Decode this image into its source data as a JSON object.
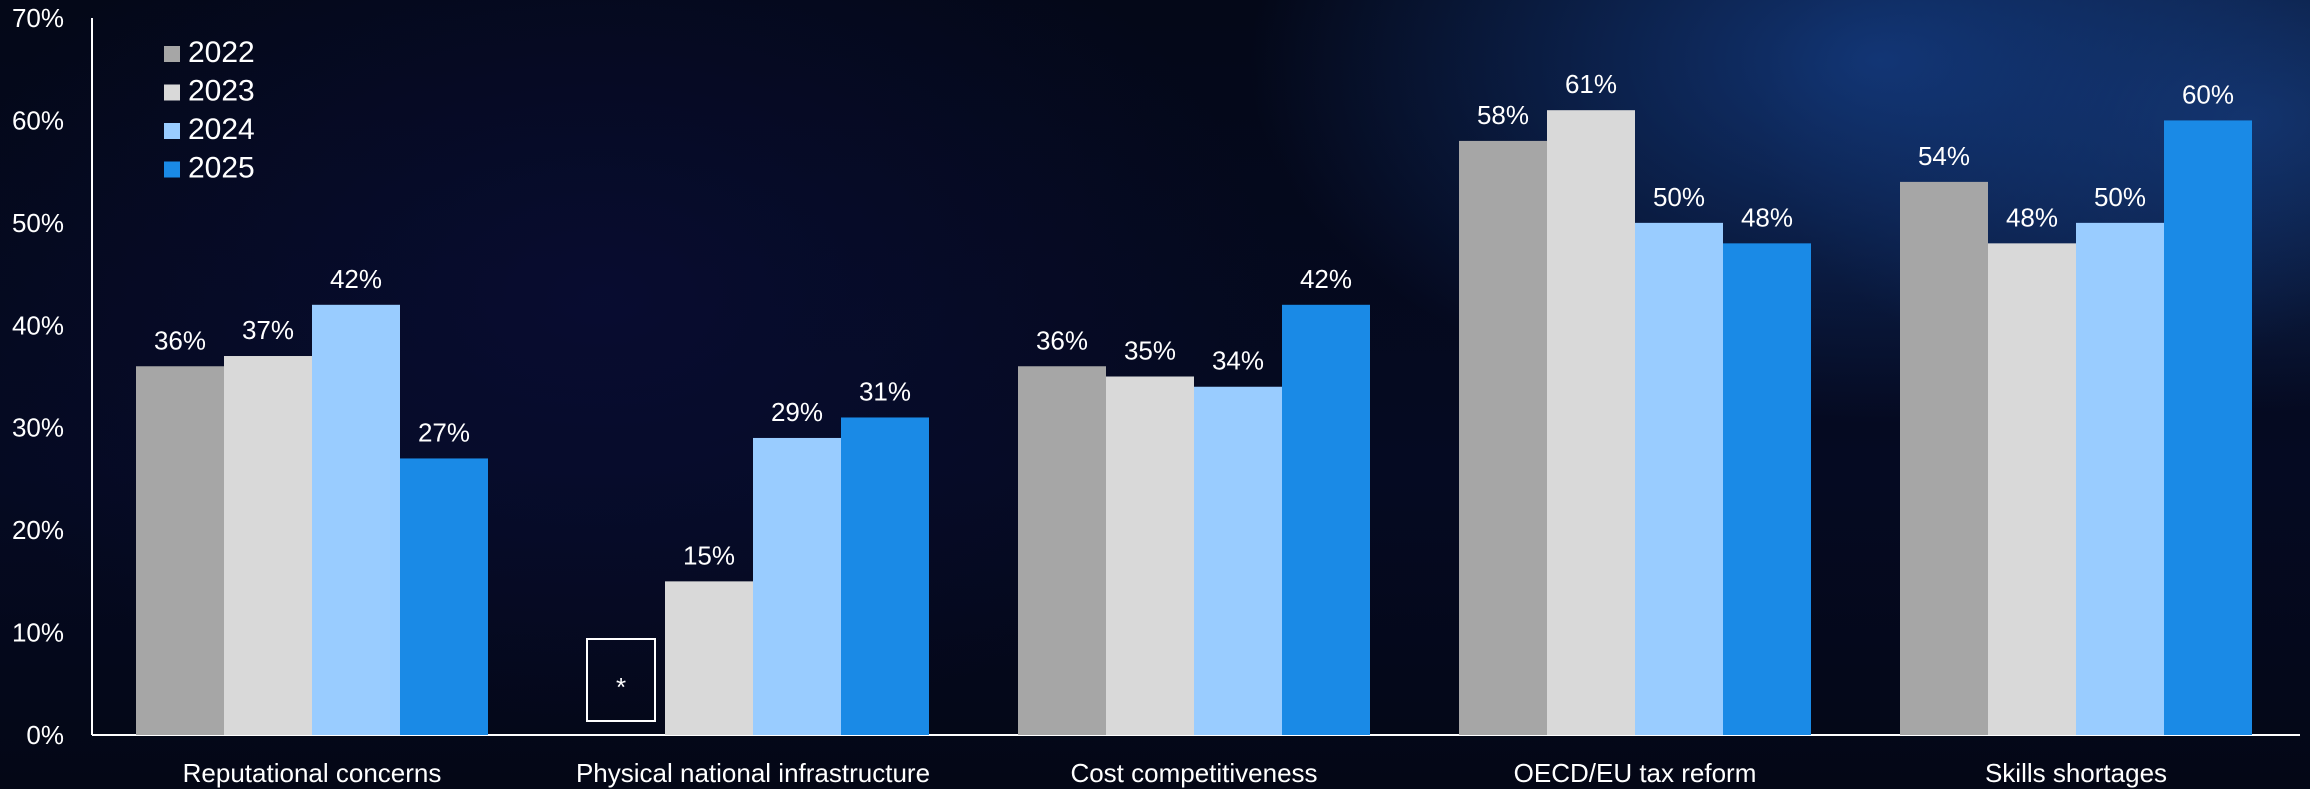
{
  "chart_data": {
    "type": "bar",
    "categories": [
      "Reputational concerns",
      "Physical national infrastructure",
      "Cost competitiveness",
      "OECD/EU tax reform",
      "Skills shortages"
    ],
    "series": [
      {
        "name": "2022",
        "color": "#a6a6a6",
        "values": [
          36,
          null,
          36,
          58,
          54
        ]
      },
      {
        "name": "2023",
        "color": "#d9d9d9",
        "values": [
          37,
          15,
          35,
          61,
          48
        ]
      },
      {
        "name": "2024",
        "color": "#99ccff",
        "values": [
          42,
          29,
          34,
          50,
          50
        ]
      },
      {
        "name": "2025",
        "color": "#1a8ae6",
        "values": [
          27,
          31,
          42,
          48,
          60
        ]
      }
    ],
    "data_labels": [
      [
        "36%",
        "*",
        "36%",
        "58%",
        "54%"
      ],
      [
        "37%",
        "15%",
        "35%",
        "61%",
        "48%"
      ],
      [
        "42%",
        "29%",
        "34%",
        "50%",
        "50%"
      ],
      [
        "27%",
        "31%",
        "42%",
        "48%",
        "60%"
      ]
    ],
    "y_ticks": [
      "0%",
      "10%",
      "20%",
      "30%",
      "40%",
      "50%",
      "60%",
      "70%"
    ],
    "ylim": [
      0,
      70
    ],
    "legend_position": "top-left",
    "grid": false,
    "title": "",
    "xlabel": "",
    "ylabel": ""
  },
  "colors": {
    "axis": "#ffffff",
    "text": "#ffffff",
    "placeholder_border": "#ffffff"
  }
}
